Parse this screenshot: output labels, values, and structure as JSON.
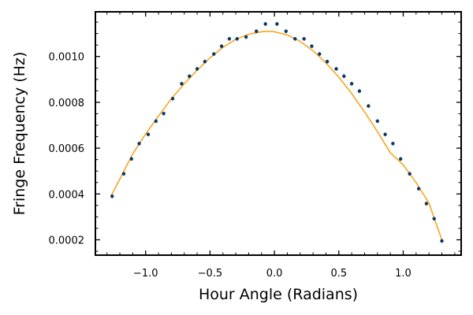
{
  "chart_data": {
    "type": "scatter",
    "title": "",
    "xlabel": "Hour Angle (Radians)",
    "ylabel": "Fringe Frequency (Hz)",
    "xlim": [
      -1.39,
      1.45
    ],
    "ylim": [
      0.000133,
      0.001195
    ],
    "xticks": [
      -1.0,
      -0.5,
      0.0,
      0.5,
      1.0
    ],
    "xtick_labels": [
      "−1.0",
      "−0.5",
      "0.0",
      "0.5",
      "1.0"
    ],
    "yticks": [
      0.0002,
      0.0004,
      0.0006,
      0.0008,
      0.001
    ],
    "ytick_labels": [
      "0.0002",
      "0.0004",
      "0.0006",
      "0.0008",
      "0.0010"
    ],
    "grid": false,
    "legend": "none",
    "colors": {
      "points": "#0b3a66",
      "fit": "#f5a623",
      "axes": "#000000"
    },
    "series": [
      {
        "kind": "points_with_errorbars",
        "x": [
          -1.26,
          -1.17,
          -1.11,
          -1.05,
          -0.98,
          -0.92,
          -0.86,
          -0.79,
          -0.72,
          -0.66,
          -0.6,
          -0.54,
          -0.47,
          -0.41,
          -0.35,
          -0.29,
          -0.22,
          -0.14,
          -0.07,
          0.02,
          0.09,
          0.16,
          0.23,
          0.29,
          0.35,
          0.41,
          0.48,
          0.54,
          0.6,
          0.66,
          0.73,
          0.8,
          0.86,
          0.92,
          0.98,
          1.05,
          1.12,
          1.18,
          1.24,
          1.3
        ],
        "y": [
          0.00039,
          0.000488,
          0.000553,
          0.00062,
          0.00066,
          0.000718,
          0.000751,
          0.000816,
          0.000881,
          0.000914,
          0.000946,
          0.000978,
          0.001011,
          0.001045,
          0.001077,
          0.001077,
          0.001085,
          0.00111,
          0.001142,
          0.001142,
          0.00111,
          0.001077,
          0.001077,
          0.001045,
          0.001011,
          0.000978,
          0.000946,
          0.000914,
          0.000881,
          0.000849,
          0.000784,
          0.000718,
          0.00066,
          0.00062,
          0.000553,
          0.000488,
          0.000423,
          0.000358,
          0.000292,
          0.000195
        ],
        "yerr": 8e-06
      },
      {
        "kind": "fit_line",
        "x": [
          -1.27,
          -1.2,
          -1.1,
          -1.0,
          -0.9,
          -0.8,
          -0.7,
          -0.6,
          -0.5,
          -0.4,
          -0.3,
          -0.2,
          -0.1,
          -0.05,
          0.0,
          0.1,
          0.2,
          0.3,
          0.4,
          0.5,
          0.6,
          0.7,
          0.8,
          0.9,
          1.0,
          1.1,
          1.2,
          1.3
        ],
        "y": [
          0.00039,
          0.000465,
          0.000575,
          0.000662,
          0.00074,
          0.000816,
          0.000881,
          0.00094,
          0.000994,
          0.00104,
          0.001075,
          0.001097,
          0.001108,
          0.00111,
          0.001108,
          0.001094,
          0.001066,
          0.001025,
          0.000972,
          0.00091,
          0.000838,
          0.000758,
          0.000672,
          0.00058,
          0.000527,
          0.00045,
          0.00036,
          0.0002
        ]
      }
    ]
  }
}
